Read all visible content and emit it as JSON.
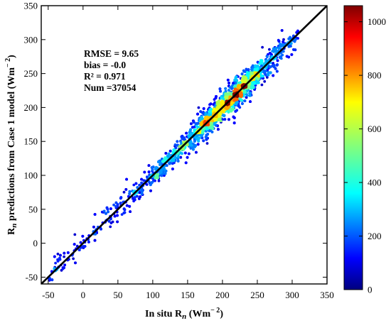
{
  "chart_data": {
    "type": "scatter",
    "subtype": "density-scatter",
    "xlabel": "In situ R",
    "xlabel_sub": "n",
    "xlabel_unit": " (Wm",
    "xlabel_sup": "− 2",
    "xlabel_close": ")",
    "ylabel": "R",
    "ylabel_sub": "n",
    "ylabel_rest": " predictions from Case 1 model (Wm",
    "ylabel_sup": "− 2",
    "ylabel_close": ")",
    "xlim": [
      -60,
      350
    ],
    "ylim": [
      -60,
      350
    ],
    "xticks": [
      -50,
      0,
      50,
      100,
      150,
      200,
      250,
      300,
      350
    ],
    "yticks": [
      -50,
      0,
      50,
      100,
      150,
      200,
      250,
      300,
      350
    ],
    "reference_line": {
      "type": "1:1",
      "color": "#000000"
    },
    "density_model": {
      "center": [
        215,
        213
      ],
      "min_value": -50,
      "max_value": 310
    },
    "stats": {
      "rmse": "RMSE = 9.65",
      "bias": "bias = -0.0",
      "r2": "R² = 0.971",
      "num": "Num =37054"
    },
    "colorbar": {
      "min": 0,
      "max": 1060,
      "ticks": [
        0,
        200,
        400,
        600,
        800,
        1000
      ],
      "colormap": "jet"
    },
    "grid": false,
    "legend": "none"
  }
}
